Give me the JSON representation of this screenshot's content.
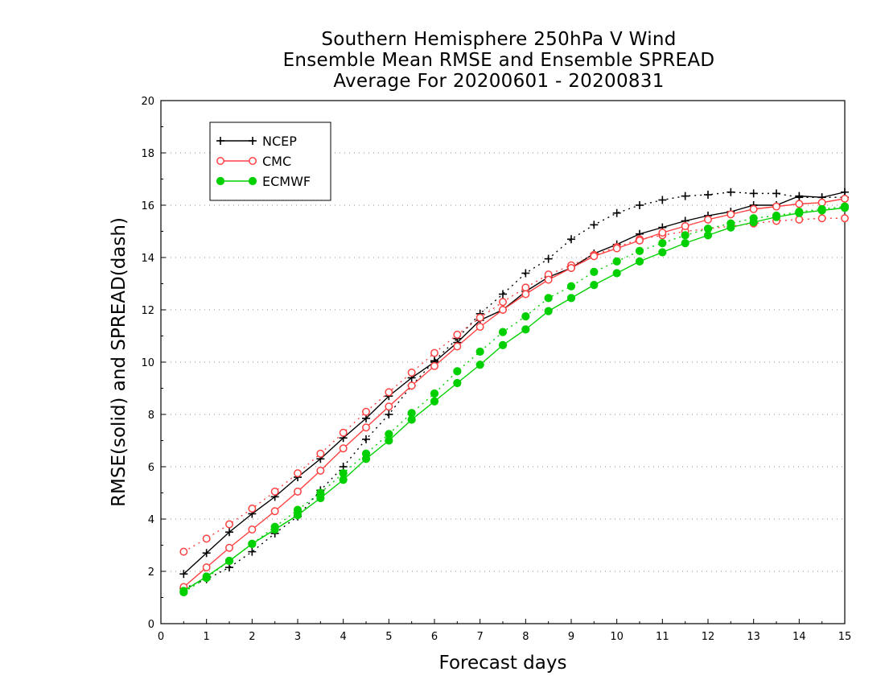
{
  "chart_data": {
    "type": "line",
    "title_lines": [
      "Southern Hemisphere 250hPa V Wind",
      "Ensemble Mean RMSE and Ensemble SPREAD",
      "Average For 20200601 - 20200831"
    ],
    "xlabel": "Forecast days",
    "ylabel": "RMSE(solid) and SPREAD(dash)",
    "xlim": [
      0,
      15
    ],
    "ylim": [
      0,
      20
    ],
    "xticks": [
      0,
      1,
      2,
      3,
      4,
      5,
      6,
      7,
      8,
      9,
      10,
      11,
      12,
      13,
      14,
      15
    ],
    "yticks": [
      0,
      2,
      4,
      6,
      8,
      10,
      12,
      14,
      16,
      18,
      20
    ],
    "grid": "horizontal dotted",
    "legend_position": "top-left",
    "x": [
      0.5,
      1,
      1.5,
      2,
      2.5,
      3,
      3.5,
      4,
      4.5,
      5,
      5.5,
      6,
      6.5,
      7,
      7.5,
      8,
      8.5,
      9,
      9.5,
      10,
      10.5,
      11,
      11.5,
      12,
      12.5,
      13,
      13.5,
      14,
      14.5,
      15
    ],
    "series": [
      {
        "name": "NCEP",
        "color": "#000000",
        "marker": "plus",
        "rmse": [
          1.9,
          2.7,
          3.5,
          4.2,
          4.85,
          5.6,
          6.3,
          7.1,
          7.85,
          8.7,
          9.4,
          10.0,
          10.75,
          11.6,
          12.0,
          12.7,
          13.25,
          13.6,
          14.15,
          14.5,
          14.9,
          15.15,
          15.4,
          15.6,
          15.75,
          16.0,
          16.0,
          16.35,
          16.3,
          16.5
        ],
        "spread": [
          1.35,
          1.7,
          2.15,
          2.75,
          3.45,
          4.1,
          5.1,
          6.0,
          7.05,
          8.0,
          9.1,
          10.05,
          10.9,
          11.85,
          12.6,
          13.4,
          13.95,
          14.7,
          15.25,
          15.7,
          16.0,
          16.2,
          16.35,
          16.4,
          16.5,
          16.45,
          16.45,
          16.3,
          16.3,
          16.3
        ]
      },
      {
        "name": "CMC",
        "color": "#ff4040",
        "marker": "open-circle",
        "rmse": [
          1.4,
          2.15,
          2.9,
          3.6,
          4.3,
          5.05,
          5.85,
          6.7,
          7.5,
          8.3,
          9.1,
          9.85,
          10.6,
          11.35,
          12.0,
          12.6,
          13.15,
          13.6,
          14.05,
          14.35,
          14.65,
          14.95,
          15.2,
          15.45,
          15.65,
          15.85,
          15.95,
          16.05,
          16.1,
          16.25
        ],
        "spread": [
          2.75,
          3.25,
          3.8,
          4.4,
          5.05,
          5.75,
          6.5,
          7.3,
          8.1,
          8.85,
          9.6,
          10.35,
          11.05,
          11.7,
          12.3,
          12.85,
          13.35,
          13.7,
          14.1,
          14.4,
          14.7,
          14.85,
          15.0,
          15.1,
          15.2,
          15.3,
          15.4,
          15.45,
          15.5,
          15.5
        ]
      },
      {
        "name": "ECMWF",
        "color": "#00d000",
        "marker": "filled-circle",
        "rmse": [
          1.25,
          1.8,
          2.4,
          3.05,
          3.6,
          4.15,
          4.8,
          5.5,
          6.3,
          7.0,
          7.8,
          8.5,
          9.2,
          9.9,
          10.65,
          11.25,
          11.95,
          12.45,
          12.95,
          13.4,
          13.85,
          14.2,
          14.55,
          14.85,
          15.15,
          15.35,
          15.55,
          15.7,
          15.8,
          15.9
        ],
        "spread": [
          1.2,
          1.75,
          2.4,
          3.05,
          3.7,
          4.35,
          5.0,
          5.75,
          6.5,
          7.25,
          8.05,
          8.8,
          9.65,
          10.4,
          11.15,
          11.75,
          12.45,
          12.9,
          13.45,
          13.85,
          14.25,
          14.55,
          14.85,
          15.1,
          15.3,
          15.5,
          15.6,
          15.75,
          15.85,
          15.95
        ]
      }
    ]
  }
}
